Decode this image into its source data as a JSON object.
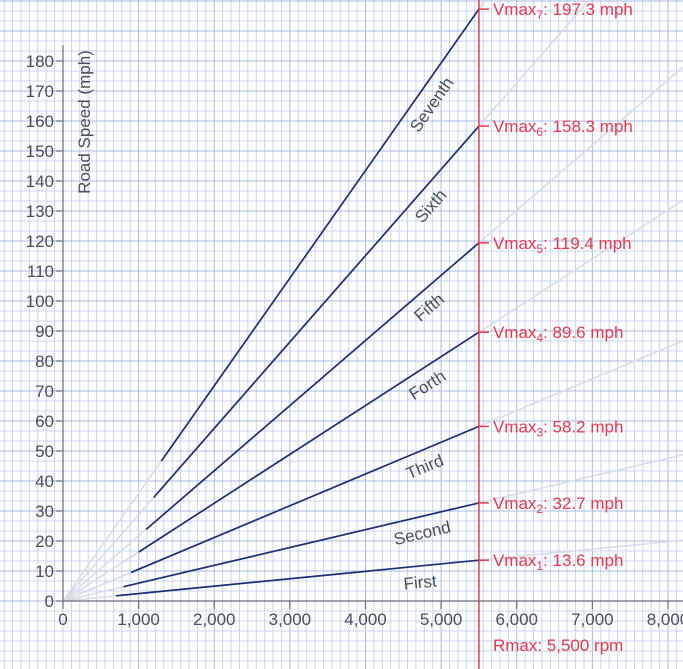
{
  "chart_data": {
    "type": "line",
    "title": "",
    "xlabel": "",
    "ylabel": "Road Speed (mph)",
    "xlim": [
      0,
      8000
    ],
    "ylim": [
      0,
      180
    ],
    "x_ticks": [
      0,
      1000,
      2000,
      3000,
      4000,
      5000,
      6000,
      7000,
      8000
    ],
    "x_tick_labels": [
      "0",
      "1,000",
      "2,000",
      "3,000",
      "4,000",
      "5,000",
      "6,000",
      "7,000",
      "8,000"
    ],
    "y_ticks": [
      0,
      10,
      20,
      30,
      40,
      50,
      60,
      70,
      80,
      90,
      100,
      110,
      120,
      130,
      140,
      150,
      160,
      170,
      180
    ],
    "y_tick_labels": [
      "0",
      "10",
      "20",
      "30",
      "40",
      "50",
      "60",
      "70",
      "80",
      "90",
      "100",
      "110",
      "120",
      "130",
      "140",
      "150",
      "160",
      "170",
      "180"
    ],
    "grid": true,
    "rmax": {
      "rpm": 5500,
      "label": "Rmax: 5,500 rpm"
    },
    "series": [
      {
        "name": "First",
        "x_start": 700,
        "x_end": 5500,
        "vmax": 13.6,
        "vmax_prefix": "Vmax",
        "vmax_sub": "1",
        "vmax_suffix": ": 13.6 mph",
        "color": "#1d2f78"
      },
      {
        "name": "Second",
        "x_start": 800,
        "x_end": 5500,
        "vmax": 32.7,
        "vmax_prefix": "Vmax",
        "vmax_sub": "2",
        "vmax_suffix": ": 32.7 mph",
        "color": "#1d2f78"
      },
      {
        "name": "Third",
        "x_start": 900,
        "x_end": 5500,
        "vmax": 58.2,
        "vmax_prefix": "Vmax",
        "vmax_sub": "3",
        "vmax_suffix": ": 58.2 mph",
        "color": "#1d2f78"
      },
      {
        "name": "Forth",
        "x_start": 1000,
        "x_end": 5500,
        "vmax": 89.6,
        "vmax_prefix": "Vmax",
        "vmax_sub": "4",
        "vmax_suffix": ": 89.6 mph",
        "color": "#1d2f78"
      },
      {
        "name": "Fifth",
        "x_start": 1100,
        "x_end": 5500,
        "vmax": 119.4,
        "vmax_prefix": "Vmax",
        "vmax_sub": "5",
        "vmax_suffix": ": 119.4 mph",
        "color": "#1d2f78"
      },
      {
        "name": "Sixth",
        "x_start": 1200,
        "x_end": 5500,
        "vmax": 158.3,
        "vmax_prefix": "Vmax",
        "vmax_sub": "6",
        "vmax_suffix": ": 158.3 mph",
        "color": "#1d2f78"
      },
      {
        "name": "Seventh",
        "x_start": 1300,
        "x_end": 5500,
        "vmax": 197.3,
        "vmax_prefix": "Vmax",
        "vmax_sub": "7",
        "vmax_suffix": ": 197.3 mph",
        "color": "#1d2f78"
      }
    ],
    "colors": {
      "gear_line": "#1d2f78",
      "extension": "#d8dce8",
      "rmax": "#e8384f",
      "grid_minor": "#c9d4ee",
      "grid_major": "#a9b9e0",
      "axis": "#666c78",
      "text": "#4a4f59"
    }
  }
}
